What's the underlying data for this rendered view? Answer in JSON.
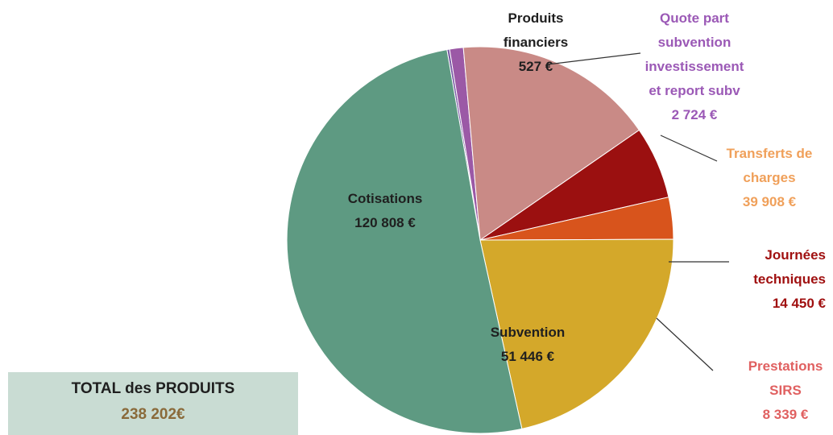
{
  "chart_data": {
    "type": "pie",
    "slices": [
      {
        "id": "produits-financiers",
        "label_lines": [
          "Produits",
          "financiers"
        ],
        "value_text": "527 €",
        "value": 527,
        "color": "#7b5aa6",
        "label_color": "#1f1f1f"
      },
      {
        "id": "quote-part",
        "label_lines": [
          "Quote part",
          "subvention",
          "investissement",
          "et report subv"
        ],
        "value_text": "2 724 €",
        "value": 2724,
        "color": "#9b59a6",
        "label_color": "#9b59b6"
      },
      {
        "id": "transferts",
        "label_lines": [
          "Transferts de",
          "charges"
        ],
        "value_text": "39 908 €",
        "value": 39908,
        "color": "#c98a86",
        "label_color": "#f0a05a"
      },
      {
        "id": "journees",
        "label_lines": [
          "Journées",
          "techniques"
        ],
        "value_text": "14 450 €",
        "value": 14450,
        "color": "#9b1010",
        "label_color": "#a01010"
      },
      {
        "id": "prestations",
        "label_lines": [
          "Prestations",
          "SIRS"
        ],
        "value_text": "8 339 €",
        "value": 8339,
        "color": "#d8541c",
        "label_color": "#e06060"
      },
      {
        "id": "subvention",
        "label_lines": [
          "Subvention"
        ],
        "value_text": "51 446 €",
        "value": 51446,
        "color": "#d4a82a",
        "label_color": "#1f1f1f"
      },
      {
        "id": "cotisations",
        "label_lines": [
          "Cotisations"
        ],
        "value_text": "120 808 €",
        "value": 120808,
        "color": "#5e9a82",
        "label_color": "#1f1f1f"
      }
    ]
  },
  "total": {
    "title": "TOTAL des PRODUITS",
    "value": "238 202€"
  }
}
